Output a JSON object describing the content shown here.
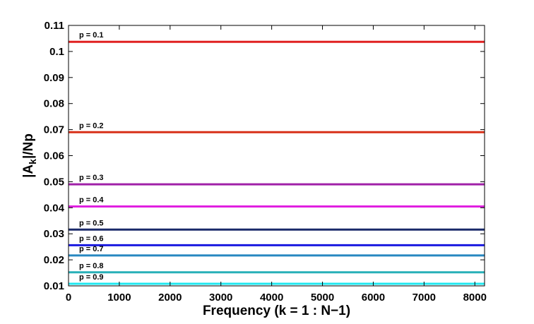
{
  "chart_data": {
    "type": "line",
    "title": "",
    "xlabel": "Frequency (k = 1 : N−1)",
    "ylabel_parts": {
      "pre": "|A",
      "sub": "k",
      "post": "|/Np"
    },
    "xlim": [
      0,
      8191
    ],
    "ylim": [
      0.01,
      0.11
    ],
    "xticks": [
      0,
      1000,
      2000,
      3000,
      4000,
      5000,
      6000,
      7000,
      8000
    ],
    "yticks": [
      0.01,
      0.02,
      0.03,
      0.04,
      0.05,
      0.06,
      0.07,
      0.08,
      0.09,
      0.1,
      0.11
    ],
    "ytick_labels": [
      "0.01",
      "0.02",
      "0.03",
      "0.04",
      "0.05",
      "0.06",
      "0.07",
      "0.08",
      "0.09",
      "0.1",
      "0.11"
    ],
    "grid": false,
    "series": [
      {
        "label": "p = 0.1",
        "x": [
          0,
          8191
        ],
        "y": [
          0.1037,
          0.1037
        ],
        "color": "#e02020"
      },
      {
        "label": "p = 0.2",
        "x": [
          0,
          8191
        ],
        "y": [
          0.069,
          0.069
        ],
        "color": "#d83018"
      },
      {
        "label": "p = 0.3",
        "x": [
          0,
          8191
        ],
        "y": [
          0.049,
          0.049
        ],
        "color": "#a020a8"
      },
      {
        "label": "p = 0.4",
        "x": [
          0,
          8191
        ],
        "y": [
          0.0405,
          0.0405
        ],
        "color": "#e020e0"
      },
      {
        "label": "p = 0.5",
        "x": [
          0,
          8191
        ],
        "y": [
          0.0316,
          0.0316
        ],
        "color": "#1a2a6a"
      },
      {
        "label": "p = 0.6",
        "x": [
          0,
          8191
        ],
        "y": [
          0.0256,
          0.0256
        ],
        "color": "#1a1ae0"
      },
      {
        "label": "p = 0.7",
        "x": [
          0,
          8191
        ],
        "y": [
          0.0217,
          0.0217
        ],
        "color": "#2888c0"
      },
      {
        "label": "p = 0.8",
        "x": [
          0,
          8191
        ],
        "y": [
          0.0152,
          0.0152
        ],
        "color": "#28b0b8"
      },
      {
        "label": "p = 0.9",
        "x": [
          0,
          8191
        ],
        "y": [
          0.0108,
          0.0108
        ],
        "color": "#20e8f0"
      }
    ]
  }
}
